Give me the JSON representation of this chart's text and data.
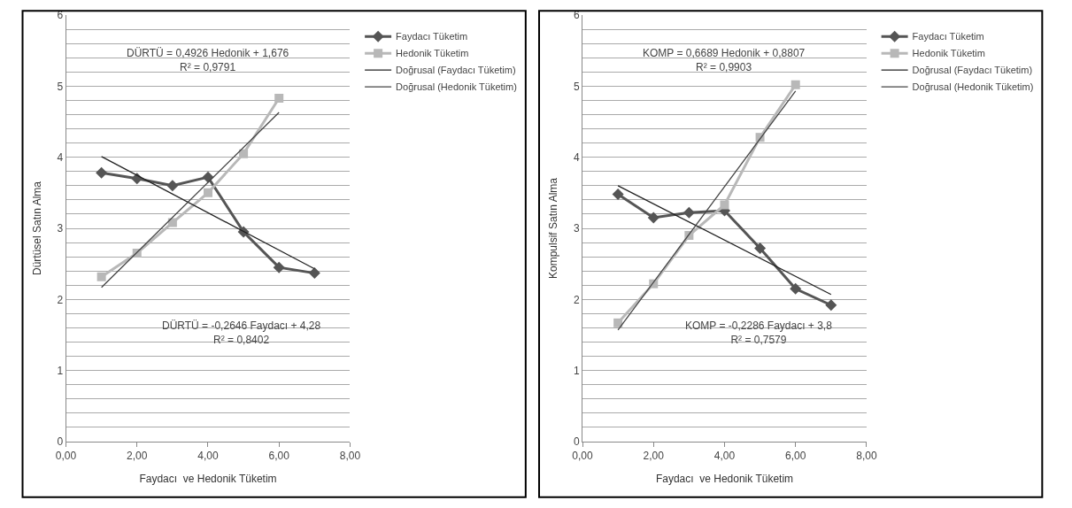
{
  "chart_data": [
    {
      "type": "line",
      "xlabel": "Faydacı  ve Hedonik Tüketim",
      "ylabel": "Dürtüsel Satın Alma",
      "xlim": [
        0,
        8
      ],
      "ylim": [
        0,
        6
      ],
      "xticks": [
        {
          "value": 0,
          "label": "0,00"
        },
        {
          "value": 2,
          "label": "2,00"
        },
        {
          "value": 4,
          "label": "4,00"
        },
        {
          "value": 6,
          "label": "6,00"
        },
        {
          "value": 8,
          "label": "8,00"
        }
      ],
      "yticks": [
        0,
        {
          "value": 0.2,
          "label": null
        },
        {
          "value": 0.4,
          "label": null
        },
        {
          "value": 0.6,
          "label": null
        },
        {
          "value": 0.8,
          "label": null
        },
        1,
        {
          "value": 1.2,
          "label": null
        },
        {
          "value": 1.4,
          "label": null
        },
        {
          "value": 1.6,
          "label": null
        },
        {
          "value": 1.8,
          "label": null
        },
        2,
        {
          "value": 2.2,
          "label": null
        },
        {
          "value": 2.4,
          "label": null
        },
        {
          "value": 2.6,
          "label": null
        },
        {
          "value": 2.8,
          "label": null
        },
        3,
        {
          "value": 3.2,
          "label": null
        },
        {
          "value": 3.4,
          "label": null
        },
        {
          "value": 3.6,
          "label": null
        },
        {
          "value": 3.8,
          "label": null
        },
        4,
        {
          "value": 4.2,
          "label": null
        },
        {
          "value": 4.4,
          "label": null
        },
        {
          "value": 4.6,
          "label": null
        },
        {
          "value": 4.8,
          "label": null
        },
        5,
        {
          "value": 5.2,
          "label": null
        },
        {
          "value": 5.4,
          "label": null
        },
        {
          "value": 5.6,
          "label": null
        },
        {
          "value": 5.8,
          "label": null
        },
        6
      ],
      "grid": "y",
      "legend": "right",
      "series": [
        {
          "name": "Faydacı Tüketim",
          "color": "#555555",
          "marker": "diamond",
          "x": [
            1,
            2,
            3,
            4,
            5,
            6,
            7
          ],
          "values": [
            3.78,
            3.7,
            3.6,
            3.72,
            2.95,
            2.45,
            2.37
          ]
        },
        {
          "name": "Hedonik Tüketim",
          "color": "#b8b8b8",
          "marker": "square",
          "x": [
            1,
            2,
            3,
            4,
            5,
            6
          ],
          "values": [
            2.32,
            2.65,
            3.08,
            3.5,
            4.05,
            4.83
          ]
        },
        {
          "name": "Doğrusal (Faydacı Tüketim)",
          "color": "#222222",
          "marker": "none",
          "x": [
            1,
            7
          ],
          "values": [
            4.01,
            2.43
          ]
        },
        {
          "name": "Doğrusal (Hedonik Tüketim)",
          "color": "#444444",
          "marker": "none",
          "x": [
            1,
            6
          ],
          "values": [
            2.17,
            4.63
          ]
        }
      ],
      "annotations": [
        "DÜRTÜ = 0,4926 Hedonik + 1,676\nR² = 0,9791",
        "DÜRTÜ = -0,2646 Faydacı + 4,28\nR² = 0,8402"
      ]
    },
    {
      "type": "line",
      "xlabel": "Faydacı  ve Hedonik Tüketim",
      "ylabel": "Kompulsif Satın Alma",
      "xlim": [
        0,
        8
      ],
      "ylim": [
        0,
        6
      ],
      "xticks": [
        {
          "value": 0,
          "label": "0,00"
        },
        {
          "value": 2,
          "label": "2,00"
        },
        {
          "value": 4,
          "label": "4,00"
        },
        {
          "value": 6,
          "label": "6,00"
        },
        {
          "value": 8,
          "label": "8,00"
        }
      ],
      "yticks": [
        0,
        {
          "value": 0.2,
          "label": null
        },
        {
          "value": 0.4,
          "label": null
        },
        {
          "value": 0.6,
          "label": null
        },
        {
          "value": 0.8,
          "label": null
        },
        1,
        {
          "value": 1.2,
          "label": null
        },
        {
          "value": 1.4,
          "label": null
        },
        {
          "value": 1.6,
          "label": null
        },
        {
          "value": 1.8,
          "label": null
        },
        2,
        {
          "value": 2.2,
          "label": null
        },
        {
          "value": 2.4,
          "label": null
        },
        {
          "value": 2.6,
          "label": null
        },
        {
          "value": 2.8,
          "label": null
        },
        3,
        {
          "value": 3.2,
          "label": null
        },
        {
          "value": 3.4,
          "label": null
        },
        {
          "value": 3.6,
          "label": null
        },
        {
          "value": 3.8,
          "label": null
        },
        4,
        {
          "value": 4.2,
          "label": null
        },
        {
          "value": 4.4,
          "label": null
        },
        {
          "value": 4.6,
          "label": null
        },
        {
          "value": 4.8,
          "label": null
        },
        5,
        {
          "value": 5.2,
          "label": null
        },
        {
          "value": 5.4,
          "label": null
        },
        {
          "value": 5.6,
          "label": null
        },
        {
          "value": 5.8,
          "label": null
        },
        6
      ],
      "grid": "y",
      "legend": "right",
      "series": [
        {
          "name": "Faydacı Tüketim",
          "color": "#555555",
          "marker": "diamond",
          "x": [
            1,
            2,
            3,
            4,
            5,
            6,
            7
          ],
          "values": [
            3.48,
            3.15,
            3.22,
            3.25,
            2.72,
            2.15,
            1.92
          ]
        },
        {
          "name": "Hedonik Tüketim",
          "color": "#b8b8b8",
          "marker": "square",
          "x": [
            1,
            2,
            3,
            4,
            5,
            6
          ],
          "values": [
            1.67,
            2.22,
            2.9,
            3.33,
            4.28,
            5.02
          ]
        },
        {
          "name": "Doğrusal (Faydacı Tüketim)",
          "color": "#222222",
          "marker": "none",
          "x": [
            1,
            7
          ],
          "values": [
            3.6,
            2.07
          ]
        },
        {
          "name": "Doğrusal (Hedonik Tüketim)",
          "color": "#444444",
          "marker": "none",
          "x": [
            1,
            6
          ],
          "values": [
            1.57,
            4.93
          ]
        }
      ],
      "annotations": [
        "KOMP = 0,6689 Hedonik + 0,8807\nR² = 0,9903",
        "KOMP = -0,2286 Faydacı + 3,8\nR² = 0,7579"
      ]
    }
  ]
}
